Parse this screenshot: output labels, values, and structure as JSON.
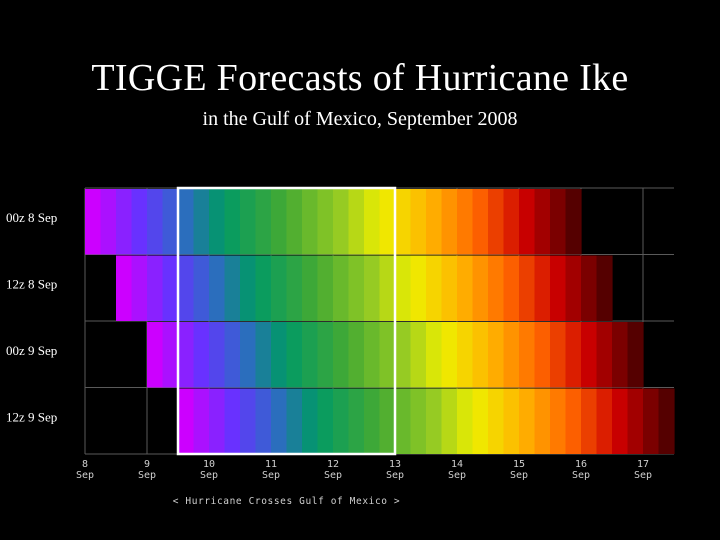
{
  "title": "TIGGE Forecasts of Hurricane Ike",
  "subtitle": "in the Gulf of Mexico, September 2008",
  "chart_data": {
    "type": "heatmap",
    "title": "TIGGE Forecasts of Hurricane Ike",
    "subtitle": "in the Gulf of Mexico, September 2008",
    "x_unit": "day of September 2008",
    "xlim": [
      8,
      17.5
    ],
    "ticks": [
      {
        "value": 8,
        "day": "8",
        "month": "Sep"
      },
      {
        "value": 9,
        "day": "9",
        "month": "Sep"
      },
      {
        "value": 10,
        "day": "10",
        "month": "Sep"
      },
      {
        "value": 11,
        "day": "11",
        "month": "Sep"
      },
      {
        "value": 12,
        "day": "12",
        "month": "Sep"
      },
      {
        "value": 13,
        "day": "13",
        "month": "Sep"
      },
      {
        "value": 14,
        "day": "14",
        "month": "Sep"
      },
      {
        "value": 15,
        "day": "15",
        "month": "Sep"
      },
      {
        "value": 16,
        "day": "16",
        "month": "Sep"
      },
      {
        "value": 17,
        "day": "17",
        "month": "Sep"
      }
    ],
    "forecast_runs": [
      {
        "label": "00z 8 Sep",
        "start": 8.0,
        "end": 16.0
      },
      {
        "label": "12z 8 Sep",
        "start": 8.5,
        "end": 16.5
      },
      {
        "label": "00z 9 Sep",
        "start": 9.0,
        "end": 17.0
      },
      {
        "label": "12z 9 Sep",
        "start": 9.5,
        "end": 17.5
      }
    ],
    "step_days": 0.25,
    "highlight": {
      "start": 9.5,
      "end": 13.0,
      "label": "< Hurricane Crosses Gulf of Mexico >",
      "color": "#ffffff"
    },
    "colors": {
      "background": "#000000",
      "grid": "#5a5a5a",
      "text": "#ffffff"
    }
  }
}
